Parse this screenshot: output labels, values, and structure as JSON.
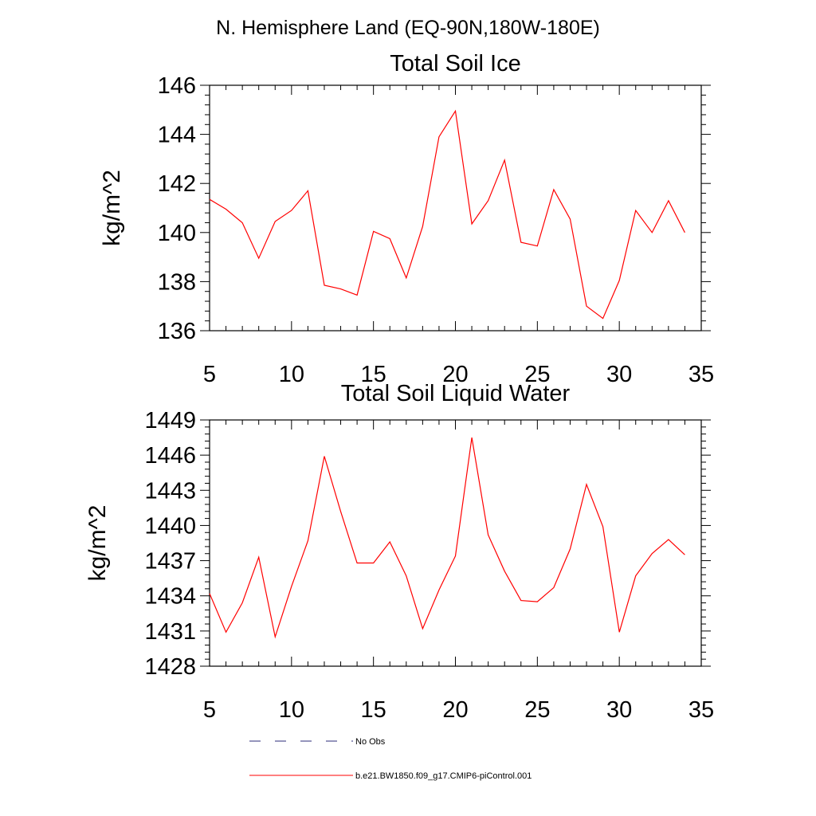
{
  "figure": {
    "main_title": "N. Hemisphere Land (EQ-90N,180W-180E)"
  },
  "colors": {
    "model_line": "#ff0000",
    "obs_line": "#2b2b7a",
    "axis": "#000000"
  },
  "chart_data": [
    {
      "type": "line",
      "title": "Total Soil Ice",
      "xlabel": "",
      "ylabel": "kg/m^2",
      "xlim": [
        5,
        35
      ],
      "ylim": [
        136,
        146
      ],
      "xticks": [
        5,
        10,
        15,
        20,
        25,
        30,
        35
      ],
      "yticks": [
        136,
        138,
        140,
        142,
        144,
        146
      ],
      "xtick_labels": [
        "5",
        "10",
        "15",
        "20",
        "25",
        "30",
        "35"
      ],
      "ytick_labels": [
        "136",
        "138",
        "140",
        "142",
        "144",
        "146"
      ],
      "x": [
        5,
        6,
        7,
        8,
        9,
        10,
        11,
        12,
        13,
        14,
        15,
        16,
        17,
        18,
        19,
        20,
        21,
        22,
        23,
        24,
        25,
        26,
        27,
        28,
        29,
        30,
        31,
        32,
        33,
        34
      ],
      "series": [
        {
          "name": "b.e21.BW1850.f09_g17.CMIP6-piControl.001",
          "values": [
            141.35,
            140.95,
            140.4,
            138.95,
            140.45,
            140.9,
            141.7,
            137.85,
            137.7,
            137.45,
            140.05,
            139.75,
            138.15,
            140.25,
            143.9,
            144.95,
            140.35,
            141.3,
            142.95,
            139.6,
            139.45,
            141.75,
            140.55,
            137.0,
            136.5,
            138.05,
            140.9,
            140.0,
            141.3,
            140.0
          ]
        }
      ]
    },
    {
      "type": "line",
      "title": "Total Soil Liquid Water",
      "xlabel": "",
      "ylabel": "kg/m^2",
      "xlim": [
        5,
        35
      ],
      "ylim": [
        1428,
        1449
      ],
      "xticks": [
        5,
        10,
        15,
        20,
        25,
        30,
        35
      ],
      "yticks": [
        1428,
        1431,
        1434,
        1437,
        1440,
        1443,
        1446,
        1449
      ],
      "xtick_labels": [
        "5",
        "10",
        "15",
        "20",
        "25",
        "30",
        "35"
      ],
      "ytick_labels": [
        "1428",
        "1431",
        "1434",
        "1437",
        "1440",
        "1443",
        "1446",
        "1449"
      ],
      "x": [
        5,
        6,
        7,
        8,
        9,
        10,
        11,
        12,
        13,
        14,
        15,
        16,
        17,
        18,
        19,
        20,
        21,
        22,
        23,
        24,
        25,
        26,
        27,
        28,
        29,
        30,
        31,
        32,
        33,
        34
      ],
      "series": [
        {
          "name": "b.e21.BW1850.f09_g17.CMIP6-piControl.001",
          "values": [
            1434.2,
            1430.9,
            1433.4,
            1437.3,
            1430.5,
            1434.8,
            1438.7,
            1445.9,
            1441.2,
            1436.8,
            1436.8,
            1438.6,
            1435.7,
            1431.2,
            1434.5,
            1437.4,
            1447.5,
            1439.2,
            1436.1,
            1433.6,
            1433.5,
            1434.7,
            1438.0,
            1443.5,
            1439.9,
            1430.9,
            1435.7,
            1437.6,
            1438.8,
            1437.5
          ]
        }
      ]
    }
  ],
  "legend": {
    "items": [
      {
        "label": "No Obs",
        "style": "dashed"
      },
      {
        "label": "b.e21.BW1850.f09_g17.CMIP6-piControl.001",
        "style": "solid"
      }
    ]
  }
}
